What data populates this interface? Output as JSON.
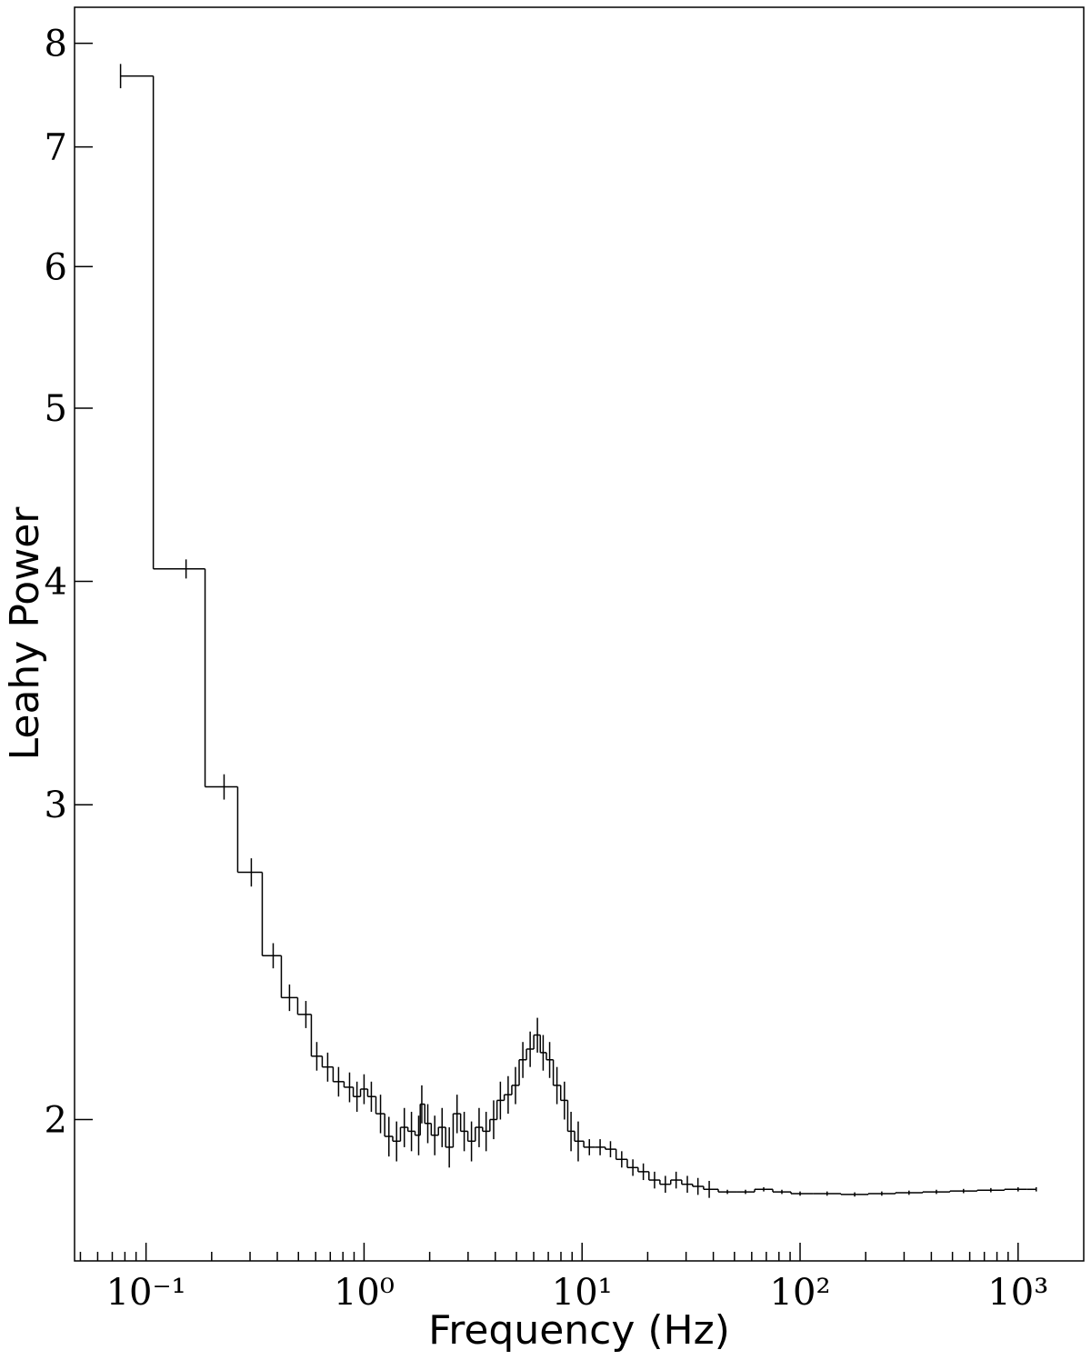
{
  "chart_data": {
    "type": "step",
    "xlabel": "Frequency (Hz)",
    "ylabel": "Leahy Power",
    "xscale": "log",
    "yscale": "log",
    "color": "#000000",
    "xlim": [
      0.047,
      2000
    ],
    "ylim": [
      1.667,
      8.38
    ],
    "xticks": [
      {
        "value": 0.1,
        "label": "10⁻¹"
      },
      {
        "value": 1,
        "label": "10⁰"
      },
      {
        "value": 10,
        "label": "10¹"
      },
      {
        "value": 100,
        "label": "10²"
      },
      {
        "value": 1000,
        "label": "10³"
      }
    ],
    "xminorticks": [
      0.05,
      0.06,
      0.07,
      0.08,
      0.09,
      0.2,
      0.3,
      0.4,
      0.5,
      0.6,
      0.7,
      0.8,
      0.9,
      2,
      3,
      4,
      5,
      6,
      7,
      8,
      9,
      20,
      30,
      40,
      50,
      60,
      70,
      80,
      90,
      200,
      300,
      400,
      500,
      600,
      700,
      800,
      900
    ],
    "yticks": [
      2,
      3,
      4,
      5,
      6,
      7,
      8
    ],
    "x": [
      0.0764,
      0.1526,
      0.228,
      0.304,
      0.383,
      0.455,
      0.541,
      0.607,
      0.681,
      0.764,
      0.858,
      0.928,
      1.0,
      1.08,
      1.19,
      1.3,
      1.41,
      1.53,
      1.65,
      1.78,
      1.84,
      1.96,
      2.11,
      2.28,
      2.46,
      2.67,
      2.88,
      3.11,
      3.37,
      3.63,
      3.93,
      4.22,
      4.58,
      4.95,
      5.35,
      5.78,
      6.24,
      6.63,
      7.1,
      7.67,
      8.3,
      8.9,
      9.6,
      10.8,
      12.1,
      13.5,
      15.2,
      17.1,
      19.1,
      21.5,
      24.1,
      27.0,
      30.4,
      34.0,
      38.3,
      46.4,
      56.2,
      68.1,
      82.5,
      100,
      133,
      178,
      237,
      316,
      422,
      562,
      750,
      1000,
      1211
    ],
    "values": [
      7.67,
      4.065,
      3.07,
      2.75,
      2.47,
      2.34,
      2.29,
      2.17,
      2.14,
      2.1,
      2.085,
      2.06,
      2.08,
      2.06,
      2.015,
      1.957,
      1.945,
      1.98,
      1.97,
      1.96,
      2.04,
      1.99,
      1.96,
      1.98,
      1.93,
      2.015,
      1.97,
      1.945,
      1.98,
      1.97,
      2.0,
      2.05,
      2.065,
      2.09,
      2.16,
      2.19,
      2.23,
      2.18,
      2.16,
      2.09,
      2.05,
      1.97,
      1.945,
      1.93,
      1.93,
      1.925,
      1.9,
      1.88,
      1.87,
      1.85,
      1.84,
      1.85,
      1.84,
      1.835,
      1.828,
      1.822,
      1.822,
      1.828,
      1.822,
      1.818,
      1.818,
      1.816,
      1.818,
      1.82,
      1.822,
      1.824,
      1.826,
      1.828,
      1.828
    ],
    "errors": [
      0.12,
      0.05,
      0.05,
      0.05,
      0.04,
      0.04,
      0.04,
      0.04,
      0.04,
      0.04,
      0.04,
      0.04,
      0.04,
      0.04,
      0.05,
      0.05,
      0.05,
      0.05,
      0.05,
      0.05,
      0.05,
      0.05,
      0.05,
      0.05,
      0.05,
      0.05,
      0.05,
      0.05,
      0.05,
      0.05,
      0.05,
      0.05,
      0.05,
      0.05,
      0.05,
      0.05,
      0.05,
      0.05,
      0.05,
      0.05,
      0.05,
      0.05,
      0.05,
      0.02,
      0.02,
      0.02,
      0.02,
      0.02,
      0.02,
      0.02,
      0.02,
      0.02,
      0.02,
      0.02,
      0.02,
      0.005,
      0.005,
      0.005,
      0.005,
      0.005,
      0.005,
      0.005,
      0.005,
      0.005,
      0.005,
      0.005,
      0.005,
      0.005,
      0.005
    ]
  }
}
